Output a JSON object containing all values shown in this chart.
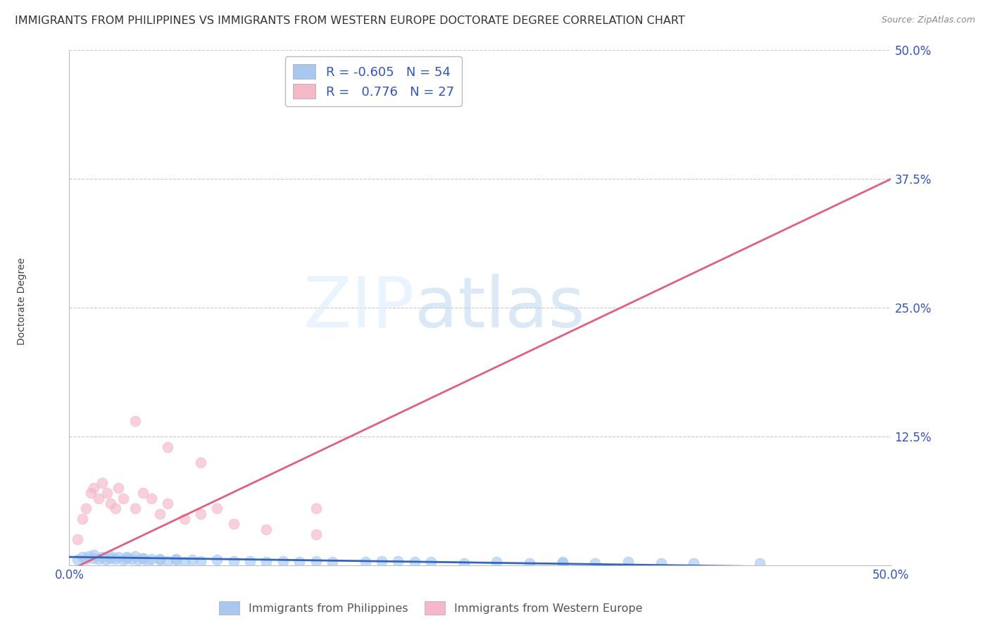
{
  "title": "IMMIGRANTS FROM PHILIPPINES VS IMMIGRANTS FROM WESTERN EUROPE DOCTORATE DEGREE CORRELATION CHART",
  "source": "Source: ZipAtlas.com",
  "ylabel": "Doctorate Degree",
  "xlim": [
    0.0,
    0.5
  ],
  "ylim": [
    0.0,
    0.5
  ],
  "background_color": "#ffffff",
  "blue_color": "#a8c8f0",
  "pink_color": "#f5b8c8",
  "blue_line_color": "#3366bb",
  "pink_line_color": "#e06080",
  "title_fontsize": 11.5,
  "axis_label_fontsize": 10,
  "tick_fontsize": 12,
  "legend_R_blue": "-0.605",
  "legend_N_blue": "54",
  "legend_R_pink": "0.776",
  "legend_N_pink": "27",
  "watermark_text": "ZIPatlas",
  "watermark_color": "#cce0f5",
  "pink_line_x0": 0.0,
  "pink_line_y0": -0.005,
  "pink_line_x1": 0.5,
  "pink_line_y1": 0.375,
  "blue_line_x0": 0.0,
  "blue_line_y0": 0.008,
  "blue_line_x1": 0.5,
  "blue_line_y1": -0.003,
  "blue_scatter_x": [
    0.005,
    0.008,
    0.01,
    0.012,
    0.015,
    0.018,
    0.02,
    0.022,
    0.025,
    0.028,
    0.03,
    0.033,
    0.035,
    0.038,
    0.04,
    0.042,
    0.045,
    0.048,
    0.05,
    0.055,
    0.06,
    0.065,
    0.07,
    0.075,
    0.08,
    0.09,
    0.1,
    0.11,
    0.12,
    0.13,
    0.14,
    0.15,
    0.16,
    0.18,
    0.2,
    0.22,
    0.24,
    0.26,
    0.28,
    0.3,
    0.32,
    0.34,
    0.36,
    0.38,
    0.015,
    0.025,
    0.035,
    0.045,
    0.055,
    0.065,
    0.19,
    0.21,
    0.3,
    0.42
  ],
  "blue_scatter_y": [
    0.005,
    0.008,
    0.006,
    0.009,
    0.007,
    0.006,
    0.008,
    0.005,
    0.007,
    0.006,
    0.008,
    0.005,
    0.007,
    0.006,
    0.009,
    0.005,
    0.007,
    0.004,
    0.006,
    0.005,
    0.004,
    0.006,
    0.003,
    0.005,
    0.004,
    0.005,
    0.004,
    0.004,
    0.003,
    0.004,
    0.003,
    0.004,
    0.003,
    0.003,
    0.004,
    0.003,
    0.002,
    0.003,
    0.002,
    0.002,
    0.002,
    0.003,
    0.002,
    0.002,
    0.01,
    0.009,
    0.008,
    0.007,
    0.006,
    0.005,
    0.004,
    0.003,
    0.003,
    0.002
  ],
  "pink_scatter_x": [
    0.005,
    0.008,
    0.01,
    0.013,
    0.015,
    0.018,
    0.02,
    0.023,
    0.025,
    0.028,
    0.03,
    0.033,
    0.04,
    0.045,
    0.05,
    0.055,
    0.06,
    0.07,
    0.08,
    0.09,
    0.1,
    0.12,
    0.15,
    0.04,
    0.06,
    0.08,
    0.15
  ],
  "pink_scatter_y": [
    0.025,
    0.045,
    0.055,
    0.07,
    0.075,
    0.065,
    0.08,
    0.07,
    0.06,
    0.055,
    0.075,
    0.065,
    0.055,
    0.07,
    0.065,
    0.05,
    0.06,
    0.045,
    0.05,
    0.055,
    0.04,
    0.035,
    0.03,
    0.14,
    0.115,
    0.1,
    0.055
  ]
}
